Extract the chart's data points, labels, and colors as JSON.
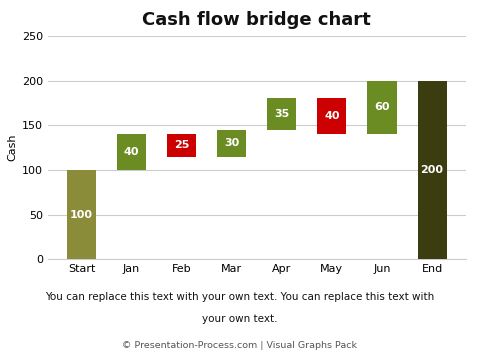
{
  "title": "Cash flow bridge chart",
  "categories": [
    "Start",
    "Jan",
    "Feb",
    "Mar",
    "Apr",
    "May",
    "Jun",
    "End"
  ],
  "values": [
    100,
    40,
    -25,
    30,
    35,
    -40,
    60,
    200
  ],
  "labels": [
    "100",
    "40",
    "25",
    "30",
    "35",
    "40",
    "60",
    "200"
  ],
  "type": [
    "base",
    "pos",
    "neg",
    "pos",
    "pos",
    "neg",
    "pos",
    "base"
  ],
  "colors": {
    "base_start": "#8B8C3A",
    "base_end": "#3B3D10",
    "pos": "#6B8C23",
    "neg": "#CC0000"
  },
  "ylabel": "Cash",
  "ylim": [
    0,
    250
  ],
  "yticks": [
    0,
    50,
    100,
    150,
    200,
    250
  ],
  "subtitle_line1": "You can replace this text with your own text. You can replace this text with",
  "subtitle_line2": "your own text.",
  "footer": "© Presentation-Process.com | Visual Graphs Pack",
  "bg_color": "#FFFFFF",
  "grid_color": "#CCCCCC",
  "text_color_light": "#FFFFFF",
  "text_color_dark": "#000000",
  "label_fontsize": 8,
  "title_fontsize": 13,
  "tick_fontsize": 8,
  "ylabel_fontsize": 8
}
